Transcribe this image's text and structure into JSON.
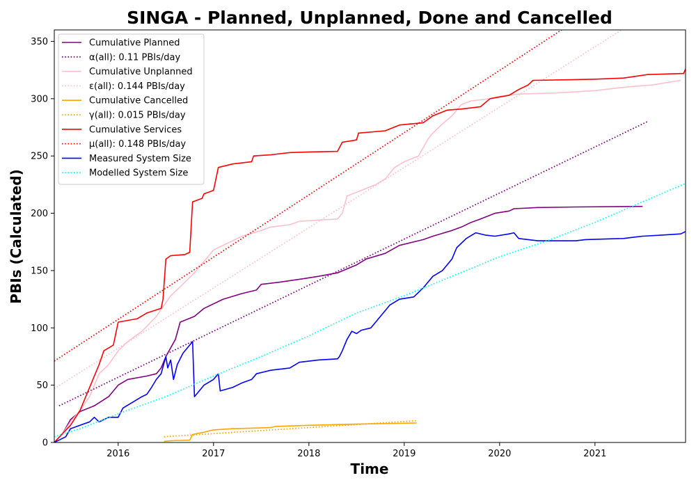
{
  "chart_data": {
    "type": "line",
    "title": "SINGA - Planned, Unplanned, Done  and Cancelled",
    "xlabel": "Time",
    "ylabel": "PBIs (Calculated)",
    "xlim": [
      2015.33,
      2021.95
    ],
    "ylim": [
      0,
      360
    ],
    "x_ticks": [
      2016,
      2017,
      2018,
      2019,
      2020,
      2021
    ],
    "x_tick_labels": [
      "2016",
      "2017",
      "2018",
      "2019",
      "2020",
      "2021"
    ],
    "y_ticks": [
      0,
      50,
      100,
      150,
      200,
      250,
      300,
      350
    ],
    "y_tick_labels": [
      "0",
      "50",
      "100",
      "150",
      "200",
      "250",
      "300",
      "350"
    ],
    "grid": false,
    "legend_position": "top-left",
    "series": [
      {
        "name": "Cumulative Planned",
        "color": "#800080",
        "style": "solid",
        "points": [
          [
            2015.33,
            0
          ],
          [
            2015.42,
            8
          ],
          [
            2015.5,
            20
          ],
          [
            2015.6,
            27
          ],
          [
            2015.75,
            32
          ],
          [
            2015.9,
            40
          ],
          [
            2016.0,
            50
          ],
          [
            2016.1,
            55
          ],
          [
            2016.3,
            58
          ],
          [
            2016.4,
            60
          ],
          [
            2016.45,
            65
          ],
          [
            2016.5,
            75
          ],
          [
            2016.6,
            90
          ],
          [
            2016.65,
            105
          ],
          [
            2016.8,
            110
          ],
          [
            2016.9,
            117
          ],
          [
            2017.1,
            125
          ],
          [
            2017.3,
            130
          ],
          [
            2017.45,
            133
          ],
          [
            2017.5,
            138
          ],
          [
            2017.7,
            140
          ],
          [
            2017.95,
            143
          ],
          [
            2018.1,
            145
          ],
          [
            2018.3,
            148
          ],
          [
            2018.5,
            155
          ],
          [
            2018.6,
            160
          ],
          [
            2018.8,
            165
          ],
          [
            2018.95,
            172
          ],
          [
            2019.2,
            177
          ],
          [
            2019.3,
            180
          ],
          [
            2019.5,
            185
          ],
          [
            2019.6,
            188
          ],
          [
            2019.7,
            192
          ],
          [
            2019.8,
            195
          ],
          [
            2019.95,
            200
          ],
          [
            2020.1,
            202
          ],
          [
            2020.15,
            204
          ],
          [
            2020.4,
            205
          ],
          [
            2020.8,
            205.5
          ],
          [
            2021.5,
            206
          ]
        ]
      },
      {
        "name": "α(all): 0.11 PBIs/day",
        "color": "#800080",
        "style": "dotted",
        "points": [
          [
            2015.38,
            32
          ],
          [
            2021.55,
            280
          ]
        ]
      },
      {
        "name": "Cumulative Unplanned",
        "color": "#FFC0CB",
        "style": "solid",
        "points": [
          [
            2015.33,
            0
          ],
          [
            2015.42,
            8
          ],
          [
            2015.5,
            18
          ],
          [
            2015.6,
            28
          ],
          [
            2015.7,
            40
          ],
          [
            2015.8,
            60
          ],
          [
            2015.9,
            68
          ],
          [
            2016.0,
            80
          ],
          [
            2016.1,
            88
          ],
          [
            2016.25,
            97
          ],
          [
            2016.4,
            110
          ],
          [
            2016.55,
            128
          ],
          [
            2016.7,
            140
          ],
          [
            2016.8,
            148
          ],
          [
            2016.9,
            158
          ],
          [
            2017.0,
            168
          ],
          [
            2017.15,
            174
          ],
          [
            2017.3,
            180
          ],
          [
            2017.5,
            185
          ],
          [
            2017.6,
            188
          ],
          [
            2017.8,
            190
          ],
          [
            2017.9,
            193
          ],
          [
            2018.1,
            194
          ],
          [
            2018.3,
            195
          ],
          [
            2018.35,
            200
          ],
          [
            2018.4,
            215
          ],
          [
            2018.55,
            220
          ],
          [
            2018.7,
            225
          ],
          [
            2018.8,
            230
          ],
          [
            2018.9,
            240
          ],
          [
            2019.0,
            245
          ],
          [
            2019.15,
            250
          ],
          [
            2019.25,
            265
          ],
          [
            2019.3,
            270
          ],
          [
            2019.4,
            278
          ],
          [
            2019.5,
            285
          ],
          [
            2019.6,
            295
          ],
          [
            2019.7,
            298
          ],
          [
            2019.9,
            300
          ],
          [
            2020.0,
            302
          ],
          [
            2020.2,
            304
          ],
          [
            2020.6,
            305
          ],
          [
            2021.0,
            307
          ],
          [
            2021.3,
            310
          ],
          [
            2021.6,
            312
          ],
          [
            2021.9,
            316
          ]
        ]
      },
      {
        "name": "ε(all): 0.144 PBIs/day",
        "color": "#FFC0CB",
        "style": "dotted",
        "points": [
          [
            2015.33,
            47
          ],
          [
            2021.28,
            360
          ]
        ]
      },
      {
        "name": "Cumulative Cancelled",
        "color": "#FFA500",
        "style": "solid",
        "points": [
          [
            2016.48,
            1
          ],
          [
            2016.55,
            1.5
          ],
          [
            2016.75,
            2
          ],
          [
            2016.78,
            7
          ],
          [
            2016.9,
            9
          ],
          [
            2017.0,
            11
          ],
          [
            2017.2,
            12
          ],
          [
            2017.6,
            13
          ],
          [
            2017.65,
            14
          ],
          [
            2018.0,
            15
          ],
          [
            2018.5,
            16
          ],
          [
            2019.13,
            17
          ]
        ]
      },
      {
        "name": "γ(all): 0.015 PBIs/day",
        "color": "#FFA500",
        "style": "dotted",
        "points": [
          [
            2016.48,
            5
          ],
          [
            2019.13,
            19
          ]
        ]
      },
      {
        "name": "Cumulative Services",
        "color": "#FF0000",
        "style": "solid",
        "points": [
          [
            2015.33,
            0
          ],
          [
            2015.42,
            8
          ],
          [
            2015.5,
            15
          ],
          [
            2015.6,
            28
          ],
          [
            2015.7,
            48
          ],
          [
            2015.8,
            68
          ],
          [
            2015.85,
            80
          ],
          [
            2015.95,
            85
          ],
          [
            2016.0,
            105
          ],
          [
            2016.2,
            108
          ],
          [
            2016.3,
            113
          ],
          [
            2016.45,
            117
          ],
          [
            2016.47,
            125
          ],
          [
            2016.5,
            160
          ],
          [
            2016.55,
            163
          ],
          [
            2016.7,
            164
          ],
          [
            2016.75,
            166
          ],
          [
            2016.78,
            210
          ],
          [
            2016.88,
            213
          ],
          [
            2016.9,
            217
          ],
          [
            2017.0,
            220
          ],
          [
            2017.05,
            240
          ],
          [
            2017.2,
            243
          ],
          [
            2017.4,
            245
          ],
          [
            2017.42,
            250
          ],
          [
            2017.6,
            251
          ],
          [
            2017.8,
            253
          ],
          [
            2018.0,
            253.5
          ],
          [
            2018.3,
            254
          ],
          [
            2018.35,
            262
          ],
          [
            2018.5,
            264
          ],
          [
            2018.52,
            270
          ],
          [
            2018.8,
            272
          ],
          [
            2018.95,
            277
          ],
          [
            2019.2,
            279
          ],
          [
            2019.3,
            285
          ],
          [
            2019.45,
            290
          ],
          [
            2019.6,
            291
          ],
          [
            2019.8,
            293
          ],
          [
            2019.9,
            300
          ],
          [
            2020.1,
            303
          ],
          [
            2020.2,
            308
          ],
          [
            2020.3,
            312
          ],
          [
            2020.35,
            316
          ],
          [
            2020.7,
            316.5
          ],
          [
            2021.0,
            317
          ],
          [
            2021.3,
            318
          ],
          [
            2021.55,
            321
          ],
          [
            2021.93,
            322
          ],
          [
            2021.95,
            326
          ]
        ]
      },
      {
        "name": "μ(all): 0.148 PBIs/day",
        "color": "#FF0000",
        "style": "dotted",
        "points": [
          [
            2015.33,
            71
          ],
          [
            2020.65,
            360
          ]
        ]
      },
      {
        "name": "Measured System Size",
        "color": "#0000FF",
        "style": "solid",
        "points": [
          [
            2015.33,
            0
          ],
          [
            2015.45,
            5
          ],
          [
            2015.5,
            12
          ],
          [
            2015.6,
            15
          ],
          [
            2015.7,
            18
          ],
          [
            2015.75,
            22
          ],
          [
            2015.8,
            18
          ],
          [
            2015.9,
            22
          ],
          [
            2016.0,
            22
          ],
          [
            2016.05,
            30
          ],
          [
            2016.15,
            35
          ],
          [
            2016.25,
            40
          ],
          [
            2016.3,
            42
          ],
          [
            2016.35,
            48
          ],
          [
            2016.4,
            55
          ],
          [
            2016.45,
            60
          ],
          [
            2016.5,
            75
          ],
          [
            2016.52,
            65
          ],
          [
            2016.55,
            72
          ],
          [
            2016.58,
            55
          ],
          [
            2016.62,
            68
          ],
          [
            2016.68,
            78
          ],
          [
            2016.75,
            85
          ],
          [
            2016.78,
            88
          ],
          [
            2016.8,
            40
          ],
          [
            2016.85,
            45
          ],
          [
            2016.9,
            50
          ],
          [
            2017.0,
            55
          ],
          [
            2017.05,
            60
          ],
          [
            2017.07,
            45
          ],
          [
            2017.2,
            48
          ],
          [
            2017.3,
            52
          ],
          [
            2017.4,
            55
          ],
          [
            2017.45,
            60
          ],
          [
            2017.6,
            63
          ],
          [
            2017.8,
            65
          ],
          [
            2017.9,
            70
          ],
          [
            2018.1,
            72
          ],
          [
            2018.3,
            73
          ],
          [
            2018.32,
            75
          ],
          [
            2018.35,
            80
          ],
          [
            2018.4,
            90
          ],
          [
            2018.45,
            97
          ],
          [
            2018.5,
            95
          ],
          [
            2018.55,
            98
          ],
          [
            2018.65,
            100
          ],
          [
            2018.75,
            110
          ],
          [
            2018.85,
            120
          ],
          [
            2018.95,
            125
          ],
          [
            2019.1,
            127
          ],
          [
            2019.2,
            135
          ],
          [
            2019.3,
            145
          ],
          [
            2019.4,
            150
          ],
          [
            2019.45,
            155
          ],
          [
            2019.5,
            160
          ],
          [
            2019.55,
            170
          ],
          [
            2019.65,
            178
          ],
          [
            2019.75,
            183
          ],
          [
            2019.85,
            181
          ],
          [
            2019.95,
            180
          ],
          [
            2020.1,
            182
          ],
          [
            2020.15,
            183
          ],
          [
            2020.2,
            178
          ],
          [
            2020.3,
            177
          ],
          [
            2020.4,
            176
          ],
          [
            2020.6,
            176
          ],
          [
            2020.8,
            176
          ],
          [
            2020.9,
            177
          ],
          [
            2021.1,
            177.5
          ],
          [
            2021.3,
            178
          ],
          [
            2021.4,
            179
          ],
          [
            2021.5,
            180
          ],
          [
            2021.7,
            181
          ],
          [
            2021.9,
            182
          ],
          [
            2021.95,
            184
          ]
        ]
      },
      {
        "name": "Modelled System Size",
        "color": "#00FFFF",
        "style": "dotted",
        "points": [
          [
            2015.33,
            5
          ],
          [
            2015.6,
            12
          ],
          [
            2016.0,
            25
          ],
          [
            2016.5,
            40
          ],
          [
            2017.0,
            58
          ],
          [
            2017.5,
            75
          ],
          [
            2018.0,
            93
          ],
          [
            2018.5,
            113
          ],
          [
            2019.0,
            128
          ],
          [
            2019.5,
            145
          ],
          [
            2020.0,
            162
          ],
          [
            2020.5,
            176
          ],
          [
            2021.0,
            192
          ],
          [
            2021.5,
            210
          ],
          [
            2021.95,
            226
          ]
        ]
      }
    ]
  }
}
